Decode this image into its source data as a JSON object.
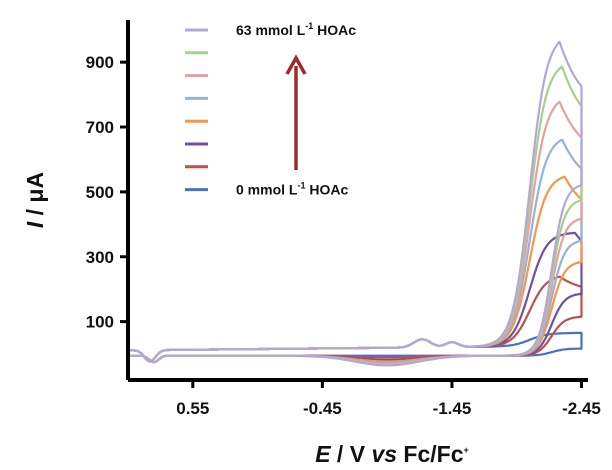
{
  "chart_data": {
    "type": "line",
    "xlabel": {
      "italic": "E",
      "plain": " / V ",
      "italic2": "vs",
      "plain2": " Fc/Fc",
      "sup": "+"
    },
    "ylabel": {
      "italic": "I",
      "plain": " / μA"
    },
    "xlim": [
      1.05,
      -2.5
    ],
    "ylim": [
      -80,
      1030
    ],
    "x_ticks": [
      0.55,
      -0.45,
      -1.45,
      -2.45
    ],
    "x_tick_labels": [
      "0.55",
      "-0.45",
      "-1.45",
      "-2.45"
    ],
    "y_ticks": [
      100,
      300,
      500,
      700,
      900
    ],
    "y_tick_labels": [
      "100",
      "300",
      "500",
      "700",
      "900"
    ],
    "legend": {
      "placement": "top-center",
      "top_label": {
        "a": "63 mmol L",
        "sup": "-1",
        "b": " HOAc"
      },
      "bottom_label": {
        "a": "0 mmol L",
        "sup": "-1",
        "b": " HOAc"
      },
      "arrow_color": "#9B2D2D"
    },
    "series": [
      {
        "color": "#4472C4",
        "scale": 0.0,
        "peak_x": -2.45,
        "peak": 40
      },
      {
        "color": "#C0504D",
        "scale": 0.2,
        "peak_x": -2.28,
        "peak": 220
      },
      {
        "color": "#7050A0",
        "scale": 0.45,
        "peak_x": -2.4,
        "peak": 350
      },
      {
        "color": "#F79646",
        "scale": 0.6,
        "peak_x": -2.32,
        "peak": 530
      },
      {
        "color": "#95B3D7",
        "scale": 0.75,
        "peak_x": -2.3,
        "peak": 650
      },
      {
        "color": "#E6A0A0",
        "scale": 0.85,
        "peak_x": -2.28,
        "peak": 775
      },
      {
        "color": "#A8D08D",
        "scale": 0.95,
        "peak_x": -2.3,
        "peak": 880
      },
      {
        "color": "#B4A7D6",
        "scale": 1.0,
        "peak_x": -2.28,
        "peak": 965
      }
    ]
  }
}
